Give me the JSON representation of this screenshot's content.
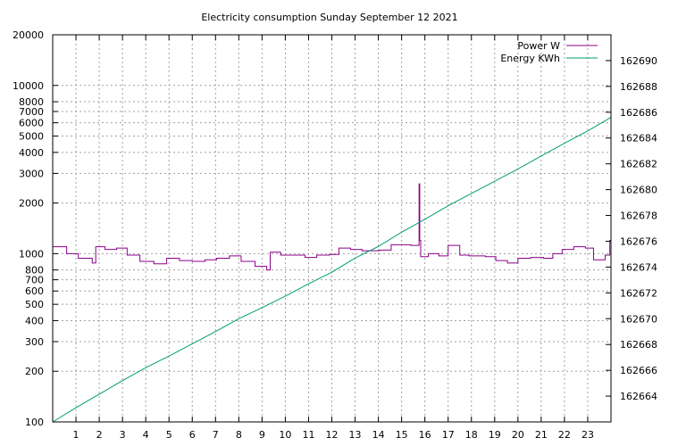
{
  "chart_data": {
    "type": "line",
    "title": "Electricity consumption Sunday September 12 2021",
    "x": {
      "range": [
        0,
        24
      ],
      "ticks": [
        1,
        2,
        3,
        4,
        5,
        6,
        7,
        8,
        9,
        10,
        11,
        12,
        13,
        14,
        15,
        16,
        17,
        18,
        19,
        20,
        21,
        22,
        23
      ]
    },
    "y_left": {
      "scale": "log",
      "range": [
        100,
        20000
      ],
      "ticks": [
        100,
        200,
        300,
        400,
        500,
        600,
        700,
        800,
        1000,
        2000,
        3000,
        4000,
        5000,
        6000,
        7000,
        8000,
        10000,
        20000
      ]
    },
    "y_right": {
      "scale": "linear",
      "range": [
        162662,
        162692
      ],
      "ticks": [
        162664,
        162666,
        162668,
        162670,
        162672,
        162674,
        162676,
        162678,
        162680,
        162682,
        162684,
        162686,
        162688,
        162690
      ]
    },
    "grid": true,
    "legend_position": "top-right",
    "series": [
      {
        "name": "Power W",
        "axis": "left",
        "color": "#8b008b",
        "style": "steps",
        "points": [
          [
            0.0,
            1100
          ],
          [
            0.6,
            1000
          ],
          [
            1.1,
            940
          ],
          [
            1.7,
            880
          ],
          [
            1.85,
            1100
          ],
          [
            2.25,
            1060
          ],
          [
            2.75,
            1080
          ],
          [
            3.2,
            980
          ],
          [
            3.75,
            900
          ],
          [
            4.35,
            870
          ],
          [
            4.9,
            940
          ],
          [
            5.45,
            910
          ],
          [
            6.0,
            900
          ],
          [
            6.55,
            920
          ],
          [
            7.05,
            940
          ],
          [
            7.6,
            970
          ],
          [
            8.1,
            900
          ],
          [
            8.7,
            840
          ],
          [
            9.2,
            800
          ],
          [
            9.35,
            1020
          ],
          [
            9.8,
            980
          ],
          [
            10.85,
            950
          ],
          [
            11.35,
            980
          ],
          [
            11.9,
            990
          ],
          [
            12.3,
            1080
          ],
          [
            12.8,
            1060
          ],
          [
            13.3,
            1040
          ],
          [
            14.05,
            1050
          ],
          [
            14.55,
            1130
          ],
          [
            15.4,
            1120
          ],
          [
            15.75,
            2600
          ],
          [
            15.78,
            1200
          ],
          [
            15.82,
            960
          ],
          [
            16.15,
            1000
          ],
          [
            16.6,
            970
          ],
          [
            17.0,
            1120
          ],
          [
            17.5,
            980
          ],
          [
            17.9,
            970
          ],
          [
            18.6,
            960
          ],
          [
            19.05,
            910
          ],
          [
            19.55,
            880
          ],
          [
            20.0,
            940
          ],
          [
            20.55,
            950
          ],
          [
            21.1,
            940
          ],
          [
            21.5,
            1000
          ],
          [
            21.9,
            1060
          ],
          [
            22.4,
            1100
          ],
          [
            22.9,
            1080
          ],
          [
            23.25,
            920
          ],
          [
            23.75,
            980
          ],
          [
            23.95,
            1200
          ],
          [
            24.0,
            1200
          ]
        ]
      },
      {
        "name": "Energy KWh",
        "axis": "right",
        "color": "#009e73",
        "style": "lines",
        "points": [
          [
            0.0,
            162662.0
          ],
          [
            1.0,
            162663.1
          ],
          [
            2.0,
            162664.15
          ],
          [
            3.0,
            162665.2
          ],
          [
            4.0,
            162666.2
          ],
          [
            5.0,
            162667.1
          ],
          [
            6.0,
            162668.05
          ],
          [
            7.0,
            162669.0
          ],
          [
            8.0,
            162670.0
          ],
          [
            9.0,
            162670.85
          ],
          [
            10.0,
            162671.75
          ],
          [
            11.0,
            162672.7
          ],
          [
            12.0,
            162673.6
          ],
          [
            13.0,
            162674.7
          ],
          [
            14.0,
            162675.6
          ],
          [
            15.0,
            162676.7
          ],
          [
            16.0,
            162677.7
          ],
          [
            17.0,
            162678.75
          ],
          [
            18.0,
            162679.7
          ],
          [
            19.0,
            162680.65
          ],
          [
            20.0,
            162681.6
          ],
          [
            21.0,
            162682.6
          ],
          [
            22.0,
            162683.6
          ],
          [
            23.0,
            162684.55
          ],
          [
            24.0,
            162685.6
          ]
        ]
      }
    ]
  }
}
